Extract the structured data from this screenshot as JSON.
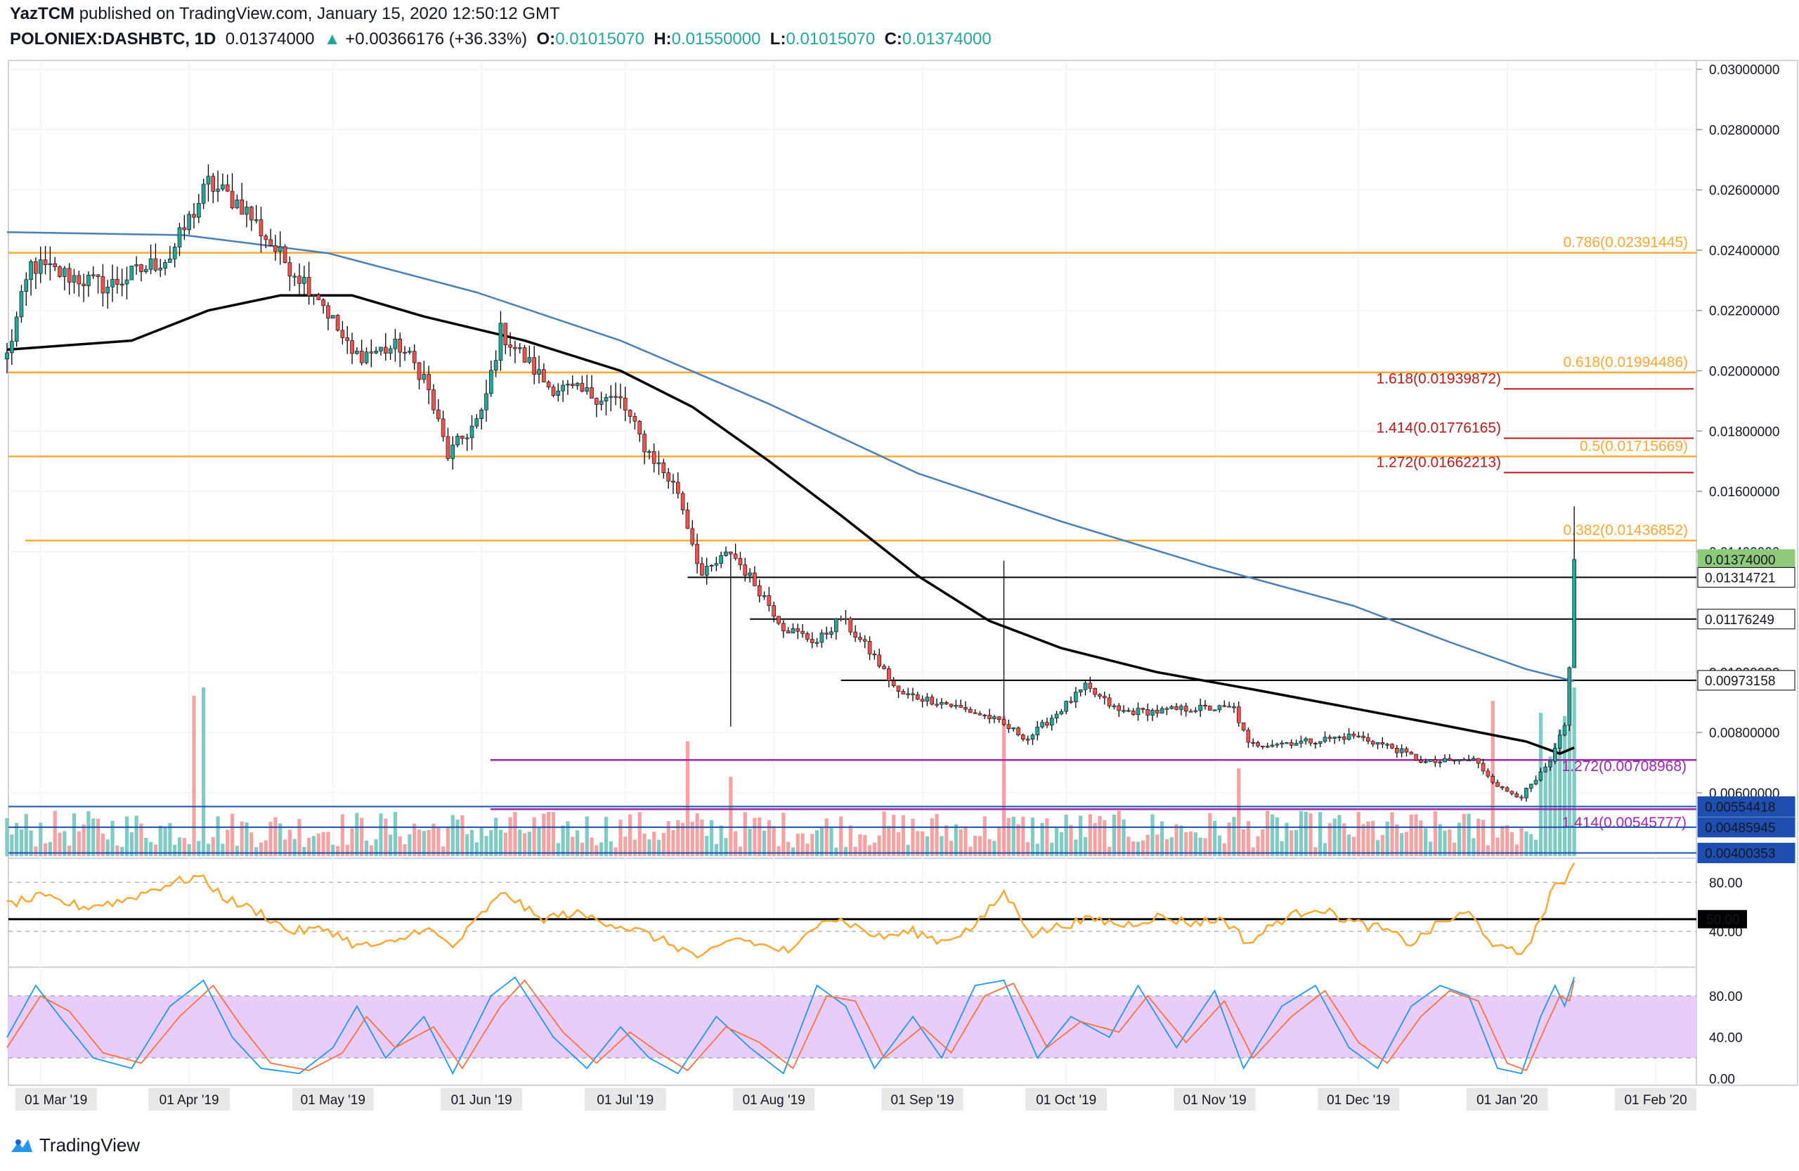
{
  "header": {
    "author": "YazTCM",
    "published_text": "published on TradingView.com, January 15, 2020 12:50:12 GMT",
    "symbol": "POLONIEX:DASHBTC, 1D",
    "last": "0.01374000",
    "change": "+0.00366176 (+36.33%)",
    "o_label": "O:",
    "o": "0.01015070",
    "h_label": "H:",
    "h": "0.01550000",
    "l_label": "L:",
    "l": "0.01015070",
    "c_label": "C:",
    "c": "0.01374000"
  },
  "footer": {
    "brand": "TradingView"
  },
  "colors": {
    "up": "#26a69a",
    "down": "#ef5350",
    "upVol": "#80cbc4",
    "downVol": "#f4a3a3",
    "fib": "#f7a935",
    "ext": "#b71c1c",
    "ma200": "#000000",
    "ma100": "#4a7fb5",
    "purple": "#9c27b0",
    "blue": "#1e4fb0",
    "rsi": "#f7a935",
    "stochK": "#2196f3",
    "stochD": "#ff7043"
  },
  "chart_data": [
    {
      "type": "candlestick",
      "title": "POLONIEX:DASHBTC, 1D",
      "x_ticks": [
        "01 Mar '19",
        "01 Apr '19",
        "01 May '19",
        "01 Jun '19",
        "01 Jul '19",
        "01 Aug '19",
        "01 Sep '19",
        "01 Oct '19",
        "01 Nov '19",
        "01 Dec '19",
        "01 Jan '20",
        "01 Feb '20"
      ],
      "x_start": "2019-02-22",
      "y_ticks": [
        "0.03000000",
        "0.02800000",
        "0.02600000",
        "0.02400000",
        "0.02200000",
        "0.02000000",
        "0.01800000",
        "0.01600000",
        "0.01400000",
        "0.01000000",
        "0.00800000",
        "0.00600000"
      ],
      "ylim": [
        0.0039,
        0.0302
      ],
      "current_price": "0.01374000",
      "ohlc_checkpoints": [
        [
          "2019-02-22",
          0.0205
        ],
        [
          "2019-02-27",
          0.0235
        ],
        [
          "2019-03-15",
          0.0228
        ],
        [
          "2019-03-28",
          0.0238
        ],
        [
          "2019-04-05",
          0.0262
        ],
        [
          "2019-04-12",
          0.0255
        ],
        [
          "2019-04-20",
          0.0238
        ],
        [
          "2019-04-28",
          0.0225
        ],
        [
          "2019-05-05",
          0.0205
        ],
        [
          "2019-05-15",
          0.0208
        ],
        [
          "2019-05-20",
          0.0198
        ],
        [
          "2019-05-25",
          0.0172
        ],
        [
          "2019-06-01",
          0.0185
        ],
        [
          "2019-06-05",
          0.0213
        ],
        [
          "2019-06-15",
          0.0195
        ],
        [
          "2019-06-30",
          0.019
        ],
        [
          "2019-07-05",
          0.0175
        ],
        [
          "2019-07-12",
          0.016
        ],
        [
          "2019-07-17",
          0.0132
        ],
        [
          "2019-07-23",
          0.014
        ],
        [
          "2019-07-30",
          0.0125
        ],
        [
          "2019-08-03",
          0.0115
        ],
        [
          "2019-08-10",
          0.011
        ],
        [
          "2019-08-15",
          0.0118
        ],
        [
          "2019-08-22",
          0.0105
        ],
        [
          "2019-08-27",
          0.0093
        ],
        [
          "2019-09-05",
          0.009
        ],
        [
          "2019-09-15",
          0.0085
        ],
        [
          "2019-09-23",
          0.0078
        ],
        [
          "2019-09-28",
          0.0085
        ],
        [
          "2019-10-05",
          0.0095
        ],
        [
          "2019-10-12",
          0.0087
        ],
        [
          "2019-10-20",
          0.0087
        ],
        [
          "2019-10-27",
          0.0088
        ],
        [
          "2019-11-05",
          0.0088
        ],
        [
          "2019-11-08",
          0.0076
        ],
        [
          "2019-11-20",
          0.0077
        ],
        [
          "2019-11-30",
          0.0079
        ],
        [
          "2019-12-08",
          0.0075
        ],
        [
          "2019-12-15",
          0.007
        ],
        [
          "2019-12-25",
          0.0071
        ],
        [
          "2019-12-31",
          0.0061
        ],
        [
          "2020-01-04",
          0.0059
        ],
        [
          "2020-01-07",
          0.0064
        ],
        [
          "2020-01-10",
          0.007
        ],
        [
          "2020-01-13",
          0.0082
        ],
        [
          "2020-01-14",
          0.0101
        ],
        [
          "2020-01-15",
          0.01374
        ]
      ],
      "last_candle": {
        "date": "2020-01-15",
        "open": 0.0101507,
        "high": 0.0155,
        "low": 0.0101507,
        "close": 0.01374
      },
      "ma_200": [
        [
          "2019-02-22",
          0.0207
        ],
        [
          "2019-03-20",
          0.021
        ],
        [
          "2019-04-05",
          0.022
        ],
        [
          "2019-04-20",
          0.0225
        ],
        [
          "2019-05-05",
          0.0225
        ],
        [
          "2019-05-20",
          0.0218
        ],
        [
          "2019-06-10",
          0.021
        ],
        [
          "2019-06-30",
          0.02
        ],
        [
          "2019-07-15",
          0.0188
        ],
        [
          "2019-07-31",
          0.017
        ],
        [
          "2019-08-15",
          0.0152
        ],
        [
          "2019-08-31",
          0.0132
        ],
        [
          "2019-09-15",
          0.0117
        ],
        [
          "2019-09-30",
          0.0108
        ],
        [
          "2019-10-20",
          0.01
        ],
        [
          "2019-11-10",
          0.0094
        ],
        [
          "2019-11-30",
          0.0088
        ],
        [
          "2019-12-20",
          0.0082
        ],
        [
          "2020-01-05",
          0.0077
        ],
        [
          "2020-01-12",
          0.0073
        ],
        [
          "2020-01-15",
          0.0075
        ]
      ],
      "ma_100": [
        [
          "2019-02-22",
          0.0246
        ],
        [
          "2019-03-31",
          0.0245
        ],
        [
          "2019-04-30",
          0.0239
        ],
        [
          "2019-05-31",
          0.0226
        ],
        [
          "2019-06-30",
          0.021
        ],
        [
          "2019-07-31",
          0.0189
        ],
        [
          "2019-08-31",
          0.0166
        ],
        [
          "2019-09-30",
          0.015
        ],
        [
          "2019-10-31",
          0.0135
        ],
        [
          "2019-11-30",
          0.0122
        ],
        [
          "2019-12-20",
          0.011
        ],
        [
          "2020-01-05",
          0.0101
        ],
        [
          "2020-01-15",
          0.0097
        ]
      ],
      "fib_retracements": [
        {
          "label": "0.786",
          "value": "0.02391445"
        },
        {
          "label": "0.618",
          "value": "0.01994486"
        },
        {
          "label": "0.5",
          "value": "0.01715669"
        },
        {
          "label": "0.382",
          "value": "0.01436852"
        }
      ],
      "fib_extensions_upper": [
        {
          "label": "1.618",
          "value": "0.01939872"
        },
        {
          "label": "1.414",
          "value": "0.01776165"
        },
        {
          "label": "1.272",
          "value": "0.01662213"
        }
      ],
      "fib_extensions_lower": [
        {
          "label": "1.272",
          "value": "0.00708968"
        },
        {
          "label": "1.414",
          "value": "0.00545777"
        }
      ],
      "horizontal_levels": [
        "0.01314721",
        "0.01176249",
        "0.00973158"
      ],
      "price_tags": [
        "0.01374000",
        "0.01314721",
        "0.01176249",
        "0.00973158",
        "0.00554418",
        "0.00485945",
        "0.00400353"
      ],
      "volume_spikes": [
        [
          "2019-04-02",
          0.95
        ],
        [
          "2019-04-04",
          1.0
        ],
        [
          "2019-07-14",
          0.68
        ],
        [
          "2019-07-23",
          0.47
        ],
        [
          "2019-09-18",
          0.83
        ],
        [
          "2019-11-06",
          0.52
        ],
        [
          "2019-12-29",
          0.92
        ],
        [
          "2020-01-08",
          0.85
        ],
        [
          "2020-01-15",
          1.0
        ]
      ]
    },
    {
      "type": "line",
      "title": "RSI",
      "y_ticks": [
        "80.00",
        "40.00"
      ],
      "reference_line": "50.00",
      "ylim": [
        12,
        98
      ],
      "values": [
        [
          "2019-02-22",
          62
        ],
        [
          "2019-03-01",
          68
        ],
        [
          "2019-03-10",
          60
        ],
        [
          "2019-03-18",
          65
        ],
        [
          "2019-03-27",
          78
        ],
        [
          "2019-04-03",
          85
        ],
        [
          "2019-04-09",
          66
        ],
        [
          "2019-04-16",
          55
        ],
        [
          "2019-04-22",
          40
        ],
        [
          "2019-04-30",
          42
        ],
        [
          "2019-05-06",
          28
        ],
        [
          "2019-05-14",
          30
        ],
        [
          "2019-05-20",
          44
        ],
        [
          "2019-05-26",
          27
        ],
        [
          "2019-06-02",
          58
        ],
        [
          "2019-06-06",
          72
        ],
        [
          "2019-06-13",
          50
        ],
        [
          "2019-06-20",
          55
        ],
        [
          "2019-06-27",
          48
        ],
        [
          "2019-07-04",
          40
        ],
        [
          "2019-07-11",
          29
        ],
        [
          "2019-07-17",
          18
        ],
        [
          "2019-07-24",
          35
        ],
        [
          "2019-07-30",
          28
        ],
        [
          "2019-08-05",
          23
        ],
        [
          "2019-08-11",
          52
        ],
        [
          "2019-08-16",
          48
        ],
        [
          "2019-08-23",
          35
        ],
        [
          "2019-08-30",
          40
        ],
        [
          "2019-09-05",
          32
        ],
        [
          "2019-09-12",
          44
        ],
        [
          "2019-09-18",
          72
        ],
        [
          "2019-09-24",
          38
        ],
        [
          "2019-10-01",
          46
        ],
        [
          "2019-10-07",
          50
        ],
        [
          "2019-10-13",
          45
        ],
        [
          "2019-10-20",
          52
        ],
        [
          "2019-10-27",
          47
        ],
        [
          "2019-11-03",
          50
        ],
        [
          "2019-11-08",
          30
        ],
        [
          "2019-11-14",
          48
        ],
        [
          "2019-11-22",
          60
        ],
        [
          "2019-11-30",
          47
        ],
        [
          "2019-12-06",
          42
        ],
        [
          "2019-12-12",
          30
        ],
        [
          "2019-12-18",
          47
        ],
        [
          "2019-12-24",
          55
        ],
        [
          "2019-12-30",
          26
        ],
        [
          "2020-01-04",
          22
        ],
        [
          "2020-01-08",
          48
        ],
        [
          "2020-01-11",
          82
        ],
        [
          "2020-01-13",
          75
        ],
        [
          "2020-01-15",
          96
        ]
      ]
    },
    {
      "type": "line",
      "title": "Stochastic RSI",
      "y_ticks": [
        "80.00",
        "40.00",
        "0.00"
      ],
      "band": [
        20,
        80
      ],
      "ylim": [
        -5,
        105
      ],
      "series": [
        {
          "values": [
            [
              "2019-02-22",
              40
            ],
            [
              "2019-02-28",
              90
            ],
            [
              "2019-03-05",
              60
            ],
            [
              "2019-03-12",
              20
            ],
            [
              "2019-03-20",
              10
            ],
            [
              "2019-03-28",
              70
            ],
            [
              "2019-04-04",
              95
            ],
            [
              "2019-04-10",
              40
            ],
            [
              "2019-04-16",
              10
            ],
            [
              "2019-04-24",
              5
            ],
            [
              "2019-05-01",
              30
            ],
            [
              "2019-05-06",
              70
            ],
            [
              "2019-05-12",
              20
            ],
            [
              "2019-05-20",
              60
            ],
            [
              "2019-05-26",
              5
            ],
            [
              "2019-06-03",
              80
            ],
            [
              "2019-06-08",
              98
            ],
            [
              "2019-06-16",
              40
            ],
            [
              "2019-06-23",
              10
            ],
            [
              "2019-06-30",
              50
            ],
            [
              "2019-07-06",
              20
            ],
            [
              "2019-07-12",
              5
            ],
            [
              "2019-07-20",
              60
            ],
            [
              "2019-07-27",
              30
            ],
            [
              "2019-08-03",
              5
            ],
            [
              "2019-08-10",
              90
            ],
            [
              "2019-08-16",
              70
            ],
            [
              "2019-08-22",
              10
            ],
            [
              "2019-08-30",
              60
            ],
            [
              "2019-09-05",
              20
            ],
            [
              "2019-09-12",
              90
            ],
            [
              "2019-09-18",
              95
            ],
            [
              "2019-09-25",
              20
            ],
            [
              "2019-10-02",
              60
            ],
            [
              "2019-10-10",
              40
            ],
            [
              "2019-10-16",
              90
            ],
            [
              "2019-10-24",
              30
            ],
            [
              "2019-11-01",
              85
            ],
            [
              "2019-11-07",
              10
            ],
            [
              "2019-11-15",
              70
            ],
            [
              "2019-11-22",
              90
            ],
            [
              "2019-11-29",
              30
            ],
            [
              "2019-12-05",
              10
            ],
            [
              "2019-12-12",
              70
            ],
            [
              "2019-12-18",
              90
            ],
            [
              "2019-12-24",
              80
            ],
            [
              "2019-12-30",
              10
            ],
            [
              "2020-01-04",
              5
            ],
            [
              "2020-01-08",
              60
            ],
            [
              "2020-01-11",
              90
            ],
            [
              "2020-01-13",
              70
            ],
            [
              "2020-01-15",
              98
            ]
          ]
        },
        {
          "values": [
            [
              "2019-02-22",
              30
            ],
            [
              "2019-03-01",
              80
            ],
            [
              "2019-03-07",
              65
            ],
            [
              "2019-03-14",
              25
            ],
            [
              "2019-03-22",
              15
            ],
            [
              "2019-03-30",
              60
            ],
            [
              "2019-04-06",
              90
            ],
            [
              "2019-04-12",
              50
            ],
            [
              "2019-04-18",
              15
            ],
            [
              "2019-04-26",
              8
            ],
            [
              "2019-05-03",
              25
            ],
            [
              "2019-05-08",
              60
            ],
            [
              "2019-05-14",
              30
            ],
            [
              "2019-05-22",
              50
            ],
            [
              "2019-05-28",
              10
            ],
            [
              "2019-06-05",
              70
            ],
            [
              "2019-06-10",
              95
            ],
            [
              "2019-06-18",
              45
            ],
            [
              "2019-06-25",
              15
            ],
            [
              "2019-07-02",
              45
            ],
            [
              "2019-07-08",
              25
            ],
            [
              "2019-07-14",
              8
            ],
            [
              "2019-07-22",
              50
            ],
            [
              "2019-07-29",
              35
            ],
            [
              "2019-08-05",
              10
            ],
            [
              "2019-08-12",
              80
            ],
            [
              "2019-08-18",
              75
            ],
            [
              "2019-08-24",
              20
            ],
            [
              "2019-09-01",
              50
            ],
            [
              "2019-09-07",
              25
            ],
            [
              "2019-09-14",
              80
            ],
            [
              "2019-09-20",
              92
            ],
            [
              "2019-09-27",
              30
            ],
            [
              "2019-10-04",
              55
            ],
            [
              "2019-10-12",
              45
            ],
            [
              "2019-10-18",
              80
            ],
            [
              "2019-10-26",
              35
            ],
            [
              "2019-11-03",
              75
            ],
            [
              "2019-11-09",
              20
            ],
            [
              "2019-11-17",
              60
            ],
            [
              "2019-11-24",
              85
            ],
            [
              "2019-12-01",
              35
            ],
            [
              "2019-12-07",
              15
            ],
            [
              "2019-12-14",
              60
            ],
            [
              "2019-12-20",
              85
            ],
            [
              "2019-12-26",
              75
            ],
            [
              "2020-01-01",
              15
            ],
            [
              "2020-01-05",
              8
            ],
            [
              "2020-01-09",
              50
            ],
            [
              "2020-01-12",
              80
            ],
            [
              "2020-01-14",
              75
            ],
            [
              "2020-01-15",
              95
            ]
          ]
        }
      ]
    }
  ]
}
